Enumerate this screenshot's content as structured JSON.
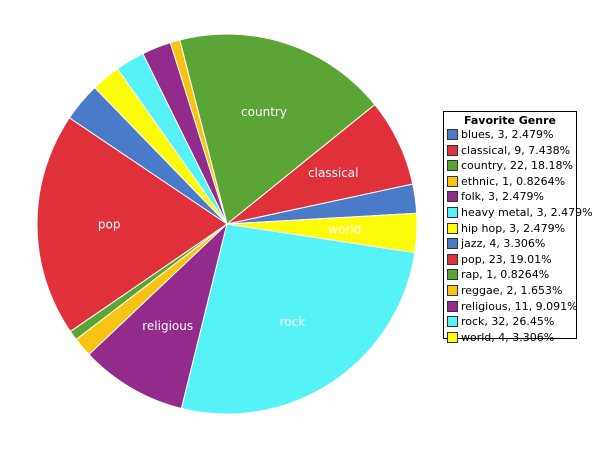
{
  "chart_data": {
    "type": "pie",
    "legend_title": "Favorite Genre",
    "legend_position": "right",
    "slices": [
      {
        "label": "blues",
        "value": 3,
        "percent": "2.479%",
        "color": "#4a7bc8",
        "legend": "blues, 3, 2.479%",
        "show_label": false
      },
      {
        "label": "classical",
        "value": 9,
        "percent": "7.438%",
        "color": "#e0303a",
        "legend": "classical, 9, 7.438%",
        "show_label": true
      },
      {
        "label": "country",
        "value": 22,
        "percent": "18.18%",
        "color": "#5aa535",
        "legend": "country, 22, 18.18%",
        "show_label": true
      },
      {
        "label": "ethnic",
        "value": 1,
        "percent": "0.8264%",
        "color": "#f7c414",
        "legend": "ethnic, 1, 0.8264%",
        "show_label": false
      },
      {
        "label": "folk",
        "value": 3,
        "percent": "2.479%",
        "color": "#922b8b",
        "legend": "folk, 3, 2.479%",
        "show_label": false
      },
      {
        "label": "heavy metal",
        "value": 3,
        "percent": "2.479%",
        "color": "#55f2f7",
        "legend": "heavy metal, 3, 2.479%",
        "show_label": false
      },
      {
        "label": "hip hop",
        "value": 3,
        "percent": "2.479%",
        "color": "#fdfb0a",
        "legend": "hip hop, 3, 2.479%",
        "show_label": false
      },
      {
        "label": "jazz",
        "value": 4,
        "percent": "3.306%",
        "color": "#4a7bc8",
        "legend": "jazz, 4, 3.306%",
        "show_label": false
      },
      {
        "label": "pop",
        "value": 23,
        "percent": "19.01%",
        "color": "#e0303a",
        "legend": "pop, 23, 19.01%",
        "show_label": true
      },
      {
        "label": "rap",
        "value": 1,
        "percent": "0.8264%",
        "color": "#5aa535",
        "legend": "rap, 1, 0.8264%",
        "show_label": false
      },
      {
        "label": "reggae",
        "value": 2,
        "percent": "1.653%",
        "color": "#f7c414",
        "legend": "reggae, 2, 1.653%",
        "show_label": false
      },
      {
        "label": "religious",
        "value": 11,
        "percent": "9.091%",
        "color": "#922b8b",
        "legend": "religious, 11, 9.091%",
        "show_label": true
      },
      {
        "label": "rock",
        "value": 32,
        "percent": "26.45%",
        "color": "#55f2f7",
        "legend": "rock, 32, 26.45%",
        "show_label": true
      },
      {
        "label": "world",
        "value": 4,
        "percent": "3.306%",
        "color": "#fdfb0a",
        "legend": "world, 4, 3.306%",
        "show_label": true
      }
    ]
  }
}
